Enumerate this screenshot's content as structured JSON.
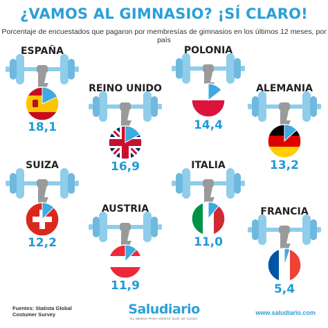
{
  "title": "¿VAMOS AL GIMNASIO? ¡SÍ CLARO!",
  "subtitle": "Porcentaje de encuestados que pagaron por membresías de gimnasios en los últimos 12 meses, por país",
  "footer": {
    "source_line1": "Fuentes: Statista Global",
    "source_line2": "Costumer Survey",
    "logo": "Saludiario",
    "logo_tagline": "EL MEDIO PARA GENTE QUE SE CUIDA",
    "website": "www.saludiario.com"
  },
  "colors": {
    "accent": "#2aa0d8",
    "barbell": "#8fcdeb",
    "barbell_dark": "#6fb8de",
    "arm": "#9a9a9a",
    "slice": "#3fa9e0",
    "value_text": "#1f9ad6"
  },
  "chart_data": {
    "type": "pie",
    "unit": "%",
    "categories": [
      "ESPAÑA",
      "REINO UNIDO",
      "POLONIA",
      "ALEMANIA",
      "SUIZA",
      "AUSTRIA",
      "ITALIA",
      "FRANCIA"
    ],
    "values": [
      18.1,
      16.9,
      14.4,
      13.2,
      12.2,
      11.9,
      11.0,
      5.4
    ],
    "value_labels": [
      "18,1",
      "16,9",
      "14,4",
      "13,2",
      "12,2",
      "11,9",
      "11,0",
      "5,4"
    ],
    "flags": [
      "spain",
      "uk",
      "poland",
      "germany",
      "switzerland",
      "austria",
      "italy",
      "france"
    ]
  }
}
